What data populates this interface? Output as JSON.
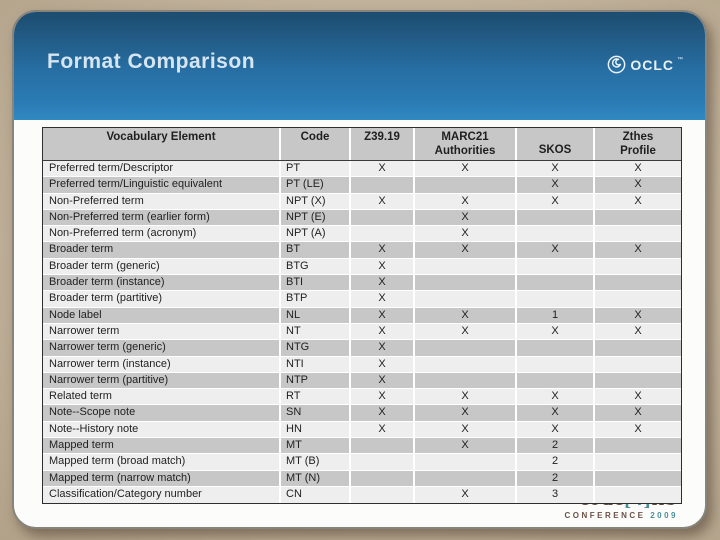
{
  "header": {
    "title": "Format Comparison",
    "logo": {
      "text": "OCLC",
      "tm": "™"
    }
  },
  "table": {
    "columns": [
      "Vocabulary Element",
      "Code",
      "Z39.19",
      "MARC21\nAuthorities",
      "SKOS",
      "Zthes\nProfile"
    ],
    "rows": [
      [
        "Preferred term/Descriptor",
        "PT",
        "X",
        "X",
        "X",
        "X"
      ],
      [
        "Preferred term/Linguistic equivalent",
        "PT (LE)",
        "",
        "",
        "X",
        "X"
      ],
      [
        "Non-Preferred term",
        "NPT (X)",
        "X",
        "X",
        "X",
        "X"
      ],
      [
        "Non-Preferred term (earlier form)",
        "NPT (E)",
        "",
        "X",
        "",
        ""
      ],
      [
        "Non-Preferred term (acronym)",
        "NPT (A)",
        "",
        "X",
        "",
        ""
      ],
      [
        "Broader term",
        "BT",
        "X",
        "X",
        "X",
        "X"
      ],
      [
        "Broader term (generic)",
        "BTG",
        "X",
        "",
        "",
        ""
      ],
      [
        "Broader term (instance)",
        "BTI",
        "X",
        "",
        "",
        ""
      ],
      [
        "Broader term (partitive)",
        "BTP",
        "X",
        "",
        "",
        ""
      ],
      [
        "Node label",
        "NL",
        "X",
        "X",
        "1",
        "X"
      ],
      [
        "Narrower term",
        "NT",
        "X",
        "X",
        "X",
        "X"
      ],
      [
        "Narrower term (generic)",
        "NTG",
        "X",
        "",
        "",
        ""
      ],
      [
        "Narrower term (instance)",
        "NTI",
        "X",
        "",
        "",
        ""
      ],
      [
        "Narrower term (partitive)",
        "NTP",
        "X",
        "",
        "",
        ""
      ],
      [
        "Related term",
        "RT",
        "X",
        "X",
        "X",
        "X"
      ],
      [
        "Note--Scope note",
        "SN",
        "X",
        "X",
        "X",
        "X"
      ],
      [
        "Note--History note",
        "HN",
        "X",
        "X",
        "X",
        "X"
      ],
      [
        "Mapped term",
        "MT",
        "",
        "X",
        "2",
        ""
      ],
      [
        "Mapped term (broad match)",
        "MT (B)",
        "",
        "",
        "2",
        ""
      ],
      [
        "Mapped term (narrow match)",
        "MT (N)",
        "",
        "",
        "2",
        ""
      ],
      [
        "Classification/Category number",
        "CN",
        "",
        "X",
        "3",
        ""
      ]
    ]
  },
  "footer": {
    "logo_pre": "code",
    "logo_bracket": "[4]",
    "logo_post": "lib",
    "conference": "CONFERENCE",
    "year": "2009"
  },
  "colors": {
    "background_tan": "#c2b39c",
    "header_blue_top": "#1d4c6e",
    "header_blue_bottom": "#3189c2",
    "row_light": "#eeeeee",
    "row_gray": "#c7c7c7",
    "title_text": "#d6e5f2",
    "c4l_maroon": "#5f463c",
    "c4l_teal": "#4b8e9b"
  }
}
